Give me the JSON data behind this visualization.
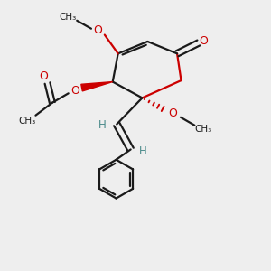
{
  "bg_color": "#eeeeee",
  "bond_color": "#1a1a1a",
  "oxygen_color": "#cc0000",
  "h_color": "#4a8a8a",
  "bond_width": 1.6,
  "figsize": [
    3.0,
    3.0
  ],
  "dpi": 100,
  "xlim": [
    0,
    10
  ],
  "ylim": [
    0,
    10
  ]
}
